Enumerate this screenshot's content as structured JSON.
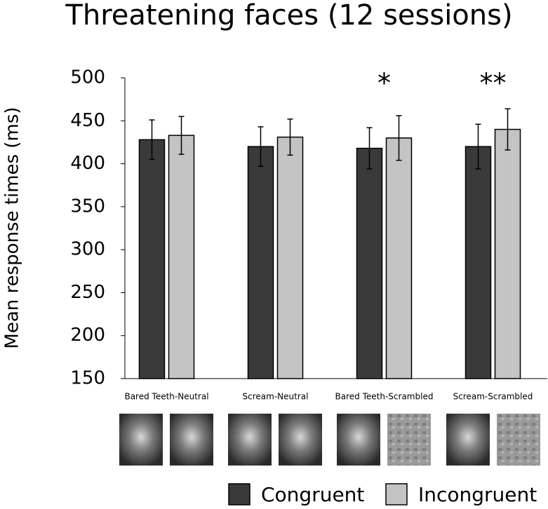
{
  "chart_data": {
    "type": "bar",
    "title": "Threatening faces (12 sessions)",
    "y_label": "Mean response times (ms)",
    "categories": [
      "Bared Teeth-Neutral",
      "Scream-Neutral",
      "Bared Teeth-Scrambled",
      "Scream-Scrambled"
    ],
    "series": [
      {
        "name": "Congruent",
        "color": "#3a3a3a",
        "values": [
          428,
          420,
          418,
          420
        ],
        "errors": [
          23,
          23,
          24,
          26
        ]
      },
      {
        "name": "Incongruent",
        "color": "#c4c4c4",
        "values": [
          433,
          431,
          430,
          440
        ],
        "errors": [
          22,
          21,
          26,
          24
        ]
      }
    ],
    "significance": [
      null,
      null,
      "*",
      "**"
    ],
    "ylim": [
      150,
      500
    ],
    "yticks": [
      150,
      200,
      250,
      300,
      350,
      400,
      450,
      500
    ],
    "grid": false,
    "legend": "bottom-right"
  }
}
